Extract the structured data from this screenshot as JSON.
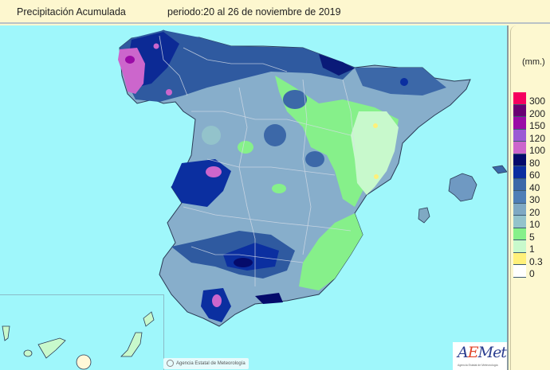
{
  "header": {
    "title": "Precipitación Acumulada",
    "period": "periodo:20 al 26 de noviembre de 2019"
  },
  "legend": {
    "unit": "(mm.)",
    "classes": [
      {
        "label": "300",
        "color": "#f5005f"
      },
      {
        "label": "200",
        "color": "#6a0073"
      },
      {
        "label": "150",
        "color": "#9a0aa6"
      },
      {
        "label": "120",
        "color": "#9c5bd4"
      },
      {
        "label": "100",
        "color": "#cc66cc"
      },
      {
        "label": "80",
        "color": "#050b6b"
      },
      {
        "label": "60",
        "color": "#0b2fa0"
      },
      {
        "label": "40",
        "color": "#3c68a8"
      },
      {
        "label": "30",
        "color": "#4f7fb6"
      },
      {
        "label": "20",
        "color": "#7fa9c3"
      },
      {
        "label": "10",
        "color": "#93c3cb"
      },
      {
        "label": "5",
        "color": "#86f08a"
      },
      {
        "label": "1",
        "color": "#c8f9cc"
      },
      {
        "label": "0.3",
        "color": "#fff07a"
      },
      {
        "label": "0",
        "color": "#ffffff"
      }
    ]
  },
  "map": {
    "sea_color": "#9ff7fb",
    "region": "España peninsular, Baleares y Canarias"
  },
  "credit": {
    "text": "Agencia Estatal de Meteorología"
  },
  "logo": {
    "text_a": "A",
    "text_e": "E",
    "text_rest": "Met",
    "subtitle": "Agencia Estatal de Meteorología"
  }
}
